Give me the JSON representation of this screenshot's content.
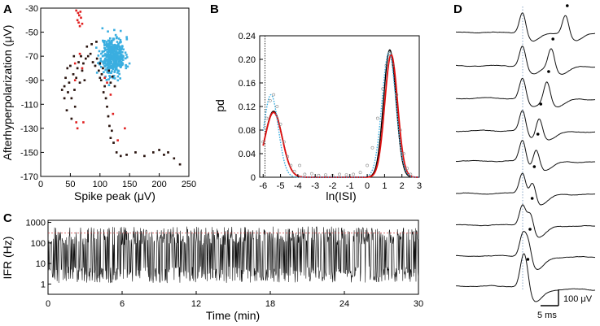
{
  "panels": {
    "a": "A",
    "b": "B",
    "c": "C",
    "d": "D"
  },
  "chart_data": [
    {
      "id": "A",
      "type": "scatter",
      "xlabel": "Spike peak (μV)",
      "ylabel": "Afterhyperpolarization (μV)",
      "xlim": [
        0,
        250
      ],
      "ylim": [
        -170,
        -30
      ],
      "xticks": [
        0,
        50,
        100,
        150,
        200,
        250
      ],
      "yticks": [
        -30,
        -50,
        -70,
        -90,
        -110,
        -130,
        -150,
        -170
      ],
      "series": [
        {
          "name": "cluster-blue",
          "color": "#3aaee0",
          "center": [
            122,
            -70
          ],
          "spread": [
            10,
            8
          ],
          "count": 420
        },
        {
          "name": "black",
          "color": "#2a1510",
          "points": [
            [
              40,
              -95
            ],
            [
              42,
              -88
            ],
            [
              45,
              -80
            ],
            [
              46,
              -100
            ],
            [
              48,
              -92
            ],
            [
              50,
              -78
            ],
            [
              52,
              -105
            ],
            [
              55,
              -85
            ],
            [
              57,
              -98
            ],
            [
              58,
              -112
            ],
            [
              60,
              -88
            ],
            [
              62,
              -80
            ],
            [
              64,
              -75
            ],
            [
              66,
              -92
            ],
            [
              68,
              -70
            ],
            [
              70,
              -82
            ],
            [
              72,
              -76
            ],
            [
              74,
              -90
            ],
            [
              76,
              -72
            ],
            [
              80,
              -70
            ],
            [
              84,
              -68
            ],
            [
              88,
              -75
            ],
            [
              92,
              -78
            ],
            [
              95,
              -72
            ],
            [
              98,
              -82
            ],
            [
              100,
              -88
            ],
            [
              103,
              -85
            ],
            [
              105,
              -80
            ],
            [
              108,
              -95
            ],
            [
              110,
              -105
            ],
            [
              112,
              -112
            ],
            [
              114,
              -120
            ],
            [
              116,
              -128
            ],
            [
              118,
              -138
            ],
            [
              120,
              -132
            ],
            [
              123,
              -142
            ],
            [
              128,
              -150
            ],
            [
              135,
              -153
            ],
            [
              145,
              -152
            ],
            [
              160,
              -150
            ],
            [
              175,
              -153
            ],
            [
              190,
              -150
            ],
            [
              200,
              -148
            ],
            [
              208,
              -152
            ],
            [
              215,
              -150
            ],
            [
              225,
              -155
            ],
            [
              235,
              -160
            ],
            [
              40,
              -105
            ],
            [
              44,
              -115
            ],
            [
              36,
              -98
            ],
            [
              52,
              -122
            ],
            [
              56,
              -70
            ],
            [
              78,
              -62
            ],
            [
              86,
              -60
            ],
            [
              94,
              -58
            ],
            [
              102,
              -90
            ],
            [
              106,
              -100
            ],
            [
              115,
              -82
            ],
            [
              118,
              -92
            ],
            [
              121,
              -87
            ],
            [
              125,
              -95
            ],
            [
              100,
              -76
            ]
          ]
        },
        {
          "name": "red",
          "color": "#e02020",
          "points": [
            [
              60,
              -32
            ],
            [
              63,
              -34
            ],
            [
              65,
              -36
            ],
            [
              67,
              -33
            ],
            [
              62,
              -40
            ],
            [
              64,
              -42
            ],
            [
              66,
              -45
            ],
            [
              70,
              -43
            ],
            [
              68,
              -38
            ],
            [
              58,
              -90
            ],
            [
              60,
              -125
            ],
            [
              62,
              -130
            ],
            [
              72,
              -125
            ],
            [
              108,
              -88
            ],
            [
              112,
              -92
            ],
            [
              118,
              -102
            ],
            [
              122,
              -118
            ],
            [
              130,
              -140
            ],
            [
              142,
              -130
            ],
            [
              66,
              -68
            ],
            [
              70,
              -80
            ],
            [
              58,
              -76
            ]
          ]
        }
      ]
    },
    {
      "id": "B",
      "type": "line",
      "xlabel": "ln(ISI)",
      "ylabel": "pd",
      "xlim": [
        -6.2,
        3
      ],
      "ylim": [
        0,
        0.24
      ],
      "xticks": [
        -6,
        -5,
        -4,
        -3,
        -2,
        -1,
        0,
        1,
        2,
        3
      ],
      "yticks": [
        0,
        0.04,
        0.08,
        0.12,
        0.16,
        0.2,
        0.24
      ],
      "dotted_vline": -5.9,
      "series": [
        {
          "name": "black-fit",
          "color": "#000000",
          "components": [
            {
              "w": 0.112,
              "mu": -5.4,
              "sigma": 0.5
            },
            {
              "w": 0.216,
              "mu": 1.3,
              "sigma": 0.36
            }
          ]
        },
        {
          "name": "red-fit",
          "color": "#e01010",
          "components": [
            {
              "w": 0.11,
              "mu": -5.4,
              "sigma": 0.5
            },
            {
              "w": 0.208,
              "mu": 1.38,
              "sigma": 0.37
            }
          ]
        },
        {
          "name": "blue-dotted",
          "color": "#3aaee0",
          "components": [
            {
              "w": 0.14,
              "mu": -5.55,
              "sigma": 0.42
            },
            {
              "w": 0.212,
              "mu": 1.25,
              "sigma": 0.4
            }
          ]
        },
        {
          "name": "open-circles",
          "color": "#888888",
          "points": [
            [
              -6.0,
              0.06
            ],
            [
              -5.8,
              0.1
            ],
            [
              -5.6,
              0.13
            ],
            [
              -5.4,
              0.14
            ],
            [
              -5.2,
              0.12
            ],
            [
              -5.0,
              0.09
            ],
            [
              -4.8,
              0.06
            ],
            [
              -4.6,
              0.035
            ],
            [
              -4.4,
              0.02
            ],
            [
              -4.2,
              0.01
            ],
            [
              -3.9,
              0.02
            ],
            [
              -3.6,
              0.005
            ],
            [
              -3.2,
              0.006
            ],
            [
              -2.8,
              0.003
            ],
            [
              -2.4,
              0.004
            ],
            [
              -2.0,
              0.003
            ],
            [
              -1.6,
              0.005
            ],
            [
              -1.2,
              0.004
            ],
            [
              -0.8,
              0.005
            ],
            [
              -0.4,
              0.008
            ],
            [
              0.0,
              0.02
            ],
            [
              0.3,
              0.05
            ],
            [
              0.6,
              0.1
            ],
            [
              0.9,
              0.15
            ],
            [
              1.1,
              0.19
            ],
            [
              1.3,
              0.21
            ],
            [
              1.5,
              0.19
            ],
            [
              1.7,
              0.14
            ],
            [
              1.9,
              0.08
            ],
            [
              2.1,
              0.04
            ],
            [
              2.3,
              0.015
            ],
            [
              2.5,
              0.005
            ]
          ]
        }
      ]
    },
    {
      "id": "C",
      "type": "line",
      "xlabel": "Time (min)",
      "ylabel": "IFR (Hz)",
      "xlim": [
        0,
        30
      ],
      "ylim_log10": [
        -0.5,
        3.1
      ],
      "xticks": [
        0,
        6,
        12,
        18,
        24,
        30
      ],
      "ytick_labels": [
        "1000",
        "100",
        "10",
        "1"
      ],
      "ytick_values": [
        1000,
        100,
        10,
        1
      ],
      "threshold_hz": 300,
      "n_samples": 900
    },
    {
      "id": "D",
      "type": "line",
      "description_of_series": "stacked spike waveforms",
      "n_traces": 9,
      "second_peak_delay_ms": [
        12.0,
        8.0,
        6.8,
        4.6,
        3.8,
        2.8,
        2.2,
        1.6,
        1.0
      ],
      "scale_voltage": "100 μV",
      "scale_time": "5 ms"
    }
  ]
}
